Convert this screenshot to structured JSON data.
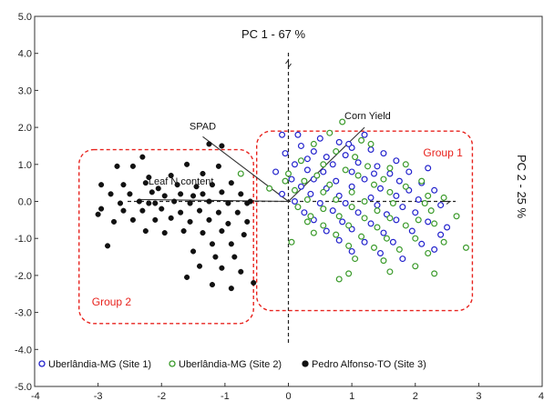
{
  "chart_data": {
    "type": "scatter",
    "title": "",
    "xlabel": "",
    "ylabel": "",
    "xlim": [
      -4,
      4
    ],
    "ylim": [
      -5,
      5
    ],
    "x_ticks": [
      -4,
      -3,
      -2,
      -1,
      0,
      1,
      2,
      3,
      4
    ],
    "x_tick_labels": [
      "-4",
      "-3",
      "-2",
      "-1",
      "0",
      "1",
      "2",
      "3",
      "4"
    ],
    "y_ticks": [
      5,
      4,
      3,
      2,
      1,
      0,
      -1,
      -2,
      -3,
      -4,
      -5
    ],
    "y_tick_labels": [
      "5.0",
      "4.0",
      "3.0",
      "2.0",
      "1.0",
      "0.0",
      "-1.0",
      "-2.0",
      "-3.0",
      "-4.0",
      "-5.0"
    ],
    "grid": false,
    "axis_labels": {
      "pc1": "PC 1 - 67 %",
      "pc2": "PC 2 - 25 %"
    },
    "legend_position": "bottom-inside",
    "series": [
      {
        "name": "Uberlândia-MG (Site 1)",
        "marker": "open-circle",
        "color": "#2222cc",
        "points": [
          [
            -0.1,
            1.8
          ],
          [
            0.15,
            1.8
          ],
          [
            1.2,
            1.8
          ],
          [
            0.5,
            1.7
          ],
          [
            0.8,
            1.6
          ],
          [
            0.2,
            1.5
          ],
          [
            1.3,
            1.4
          ],
          [
            1.0,
            1.45
          ],
          [
            -0.05,
            1.3
          ],
          [
            0.4,
            1.35
          ],
          [
            1.5,
            1.3
          ],
          [
            0.6,
            1.2
          ],
          [
            0.9,
            1.25
          ],
          [
            1.7,
            1.1
          ],
          [
            0.1,
            1.0
          ],
          [
            0.7,
            1.0
          ],
          [
            1.1,
            1.05
          ],
          [
            1.4,
            0.95
          ],
          [
            -0.2,
            0.8
          ],
          [
            0.3,
            0.85
          ],
          [
            0.55,
            0.8
          ],
          [
            1.0,
            0.8
          ],
          [
            1.6,
            0.75
          ],
          [
            1.9,
            0.8
          ],
          [
            0.05,
            0.6
          ],
          [
            0.4,
            0.6
          ],
          [
            0.75,
            0.55
          ],
          [
            1.2,
            0.6
          ],
          [
            1.75,
            0.55
          ],
          [
            2.1,
            0.5
          ],
          [
            0.2,
            0.4
          ],
          [
            0.6,
            0.35
          ],
          [
            1.0,
            0.4
          ],
          [
            1.45,
            0.35
          ],
          [
            1.9,
            0.3
          ],
          [
            2.3,
            0.3
          ],
          [
            -0.1,
            0.2
          ],
          [
            0.35,
            0.2
          ],
          [
            0.8,
            0.15
          ],
          [
            1.3,
            0.1
          ],
          [
            1.7,
            0.15
          ],
          [
            2.05,
            0.05
          ],
          [
            0.1,
            0.0
          ],
          [
            0.5,
            -0.05
          ],
          [
            0.9,
            -0.05
          ],
          [
            1.4,
            -0.1
          ],
          [
            1.8,
            -0.15
          ],
          [
            2.4,
            -0.1
          ],
          [
            0.25,
            -0.3
          ],
          [
            0.7,
            -0.25
          ],
          [
            1.1,
            -0.3
          ],
          [
            1.55,
            -0.35
          ],
          [
            2.0,
            -0.3
          ],
          [
            0.4,
            -0.5
          ],
          [
            0.85,
            -0.55
          ],
          [
            1.3,
            -0.6
          ],
          [
            1.7,
            -0.5
          ],
          [
            2.2,
            -0.55
          ],
          [
            0.6,
            -0.8
          ],
          [
            1.0,
            -0.75
          ],
          [
            1.5,
            -0.85
          ],
          [
            1.95,
            -0.8
          ],
          [
            2.4,
            -0.9
          ],
          [
            0.8,
            -1.05
          ],
          [
            1.2,
            -1.1
          ],
          [
            1.65,
            -1.1
          ],
          [
            2.1,
            -1.15
          ],
          [
            1.0,
            -1.35
          ],
          [
            1.45,
            -1.4
          ],
          [
            2.3,
            -1.3
          ],
          [
            1.8,
            -1.55
          ],
          [
            2.5,
            -0.7
          ],
          [
            0.3,
            1.15
          ],
          [
            1.35,
            0.75
          ],
          [
            0.95,
            1.55
          ],
          [
            2.2,
            0.9
          ]
        ]
      },
      {
        "name": "Uberlândia-MG (Site 2)",
        "marker": "open-circle",
        "color": "#3a9a2a",
        "points": [
          [
            0.85,
            2.15
          ],
          [
            1.3,
            1.55
          ],
          [
            -0.75,
            0.75
          ],
          [
            -0.3,
            0.35
          ],
          [
            0.4,
            1.55
          ],
          [
            0.75,
            1.35
          ],
          [
            1.05,
            1.2
          ],
          [
            0.2,
            1.1
          ],
          [
            0.55,
            1.0
          ],
          [
            1.25,
            0.95
          ],
          [
            1.6,
            0.9
          ],
          [
            0.9,
            0.85
          ],
          [
            0.0,
            0.75
          ],
          [
            0.45,
            0.7
          ],
          [
            1.1,
            0.7
          ],
          [
            1.5,
            0.6
          ],
          [
            0.25,
            0.55
          ],
          [
            0.65,
            0.45
          ],
          [
            1.35,
            0.45
          ],
          [
            1.85,
            0.4
          ],
          [
            0.1,
            0.3
          ],
          [
            0.55,
            0.25
          ],
          [
            1.0,
            0.25
          ],
          [
            1.6,
            0.25
          ],
          [
            2.2,
            0.15
          ],
          [
            0.3,
            0.05
          ],
          [
            0.75,
            0.05
          ],
          [
            1.2,
            0.0
          ],
          [
            1.65,
            -0.05
          ],
          [
            2.15,
            -0.05
          ],
          [
            0.15,
            -0.15
          ],
          [
            0.55,
            -0.2
          ],
          [
            1.0,
            -0.15
          ],
          [
            1.4,
            -0.25
          ],
          [
            2.25,
            -0.25
          ],
          [
            0.35,
            -0.4
          ],
          [
            0.8,
            -0.4
          ],
          [
            1.2,
            -0.45
          ],
          [
            1.6,
            -0.45
          ],
          [
            2.05,
            -0.5
          ],
          [
            0.55,
            -0.65
          ],
          [
            0.95,
            -0.65
          ],
          [
            1.4,
            -0.7
          ],
          [
            1.85,
            -0.65
          ],
          [
            2.3,
            -0.6
          ],
          [
            0.4,
            -0.85
          ],
          [
            0.75,
            -0.9
          ],
          [
            1.15,
            -0.95
          ],
          [
            1.55,
            -1.0
          ],
          [
            2.0,
            -1.0
          ],
          [
            2.45,
            -1.1
          ],
          [
            0.05,
            -1.1
          ],
          [
            0.95,
            -1.2
          ],
          [
            1.35,
            -1.25
          ],
          [
            1.75,
            -1.3
          ],
          [
            2.2,
            -1.4
          ],
          [
            1.05,
            -1.55
          ],
          [
            1.5,
            -1.6
          ],
          [
            2.0,
            -1.75
          ],
          [
            0.95,
            -1.95
          ],
          [
            1.6,
            -1.9
          ],
          [
            0.8,
            -2.1
          ],
          [
            2.3,
            -1.95
          ],
          [
            2.8,
            -1.25
          ],
          [
            2.65,
            -0.4
          ],
          [
            2.45,
            0.1
          ],
          [
            0.65,
            1.85
          ],
          [
            1.15,
            1.65
          ],
          [
            -0.05,
            0.55
          ],
          [
            0.3,
            -0.55
          ],
          [
            2.1,
            0.55
          ],
          [
            1.85,
            1.0
          ]
        ]
      },
      {
        "name": "Pedro Alfonso-TO (Site 3)",
        "marker": "filled-circle",
        "color": "#111111",
        "points": [
          [
            -1.25,
            1.55
          ],
          [
            -1.05,
            1.5
          ],
          [
            -2.3,
            1.2
          ],
          [
            -2.7,
            0.95
          ],
          [
            -2.45,
            0.95
          ],
          [
            -1.6,
            1.0
          ],
          [
            -1.1,
            0.95
          ],
          [
            -2.2,
            0.65
          ],
          [
            -1.85,
            0.7
          ],
          [
            -1.35,
            0.75
          ],
          [
            -2.95,
            0.45
          ],
          [
            -2.6,
            0.45
          ],
          [
            -2.25,
            0.5
          ],
          [
            -2.05,
            0.35
          ],
          [
            -1.75,
            0.45
          ],
          [
            -1.45,
            0.4
          ],
          [
            -1.2,
            0.45
          ],
          [
            -0.9,
            0.5
          ],
          [
            -2.8,
            0.2
          ],
          [
            -2.5,
            0.2
          ],
          [
            -2.15,
            0.25
          ],
          [
            -1.95,
            0.15
          ],
          [
            -1.7,
            0.2
          ],
          [
            -1.35,
            0.2
          ],
          [
            -1.05,
            0.25
          ],
          [
            -0.75,
            0.2
          ],
          [
            -2.65,
            -0.05
          ],
          [
            -2.35,
            0.0
          ],
          [
            -2.1,
            -0.05
          ],
          [
            -1.8,
            0.0
          ],
          [
            -1.55,
            -0.05
          ],
          [
            -1.25,
            0.0
          ],
          [
            -0.95,
            -0.05
          ],
          [
            -0.65,
            -0.05
          ],
          [
            -2.95,
            -0.2
          ],
          [
            -2.6,
            -0.25
          ],
          [
            -2.3,
            -0.25
          ],
          [
            -2.0,
            -0.2
          ],
          [
            -1.7,
            -0.3
          ],
          [
            -1.4,
            -0.25
          ],
          [
            -1.1,
            -0.3
          ],
          [
            -0.8,
            -0.3
          ],
          [
            -2.45,
            -0.5
          ],
          [
            -2.1,
            -0.5
          ],
          [
            -1.85,
            -0.45
          ],
          [
            -1.55,
            -0.55
          ],
          [
            -1.25,
            -0.5
          ],
          [
            -0.95,
            -0.6
          ],
          [
            -0.65,
            -0.55
          ],
          [
            -2.25,
            -0.8
          ],
          [
            -1.95,
            -0.85
          ],
          [
            -1.65,
            -0.8
          ],
          [
            -1.35,
            -0.85
          ],
          [
            -1.05,
            -0.8
          ],
          [
            -0.7,
            -0.9
          ],
          [
            -2.85,
            -1.2
          ],
          [
            -1.2,
            -1.15
          ],
          [
            -0.9,
            -1.15
          ],
          [
            -1.5,
            -1.35
          ],
          [
            -1.15,
            -1.5
          ],
          [
            -0.85,
            -1.5
          ],
          [
            -1.4,
            -1.75
          ],
          [
            -1.05,
            -1.8
          ],
          [
            -0.75,
            -1.9
          ],
          [
            -1.6,
            -2.05
          ],
          [
            -1.2,
            -2.25
          ],
          [
            -0.9,
            -2.35
          ],
          [
            -0.55,
            -2.2
          ],
          [
            -2.2,
            -0.05
          ],
          [
            -0.6,
            0.0
          ],
          [
            -1.5,
            0.15
          ],
          [
            -2.75,
            -0.55
          ],
          [
            -3.0,
            -0.35
          ]
        ]
      }
    ],
    "loading_vectors": [
      {
        "label": "SPAD",
        "x": -1.35,
        "y": 1.75
      },
      {
        "label": "Leaf N content",
        "x": -2.35,
        "y": 0.05
      },
      {
        "label": "Corn Yield",
        "x": 1.2,
        "y": 2.0
      }
    ],
    "groups": [
      {
        "label": "Group 1",
        "x_range": [
          -0.5,
          2.9
        ],
        "y_range": [
          -2.95,
          1.9
        ]
      },
      {
        "label": "Group 2",
        "x_range": [
          -3.3,
          -0.55
        ],
        "y_range": [
          -3.3,
          1.4
        ]
      }
    ]
  }
}
